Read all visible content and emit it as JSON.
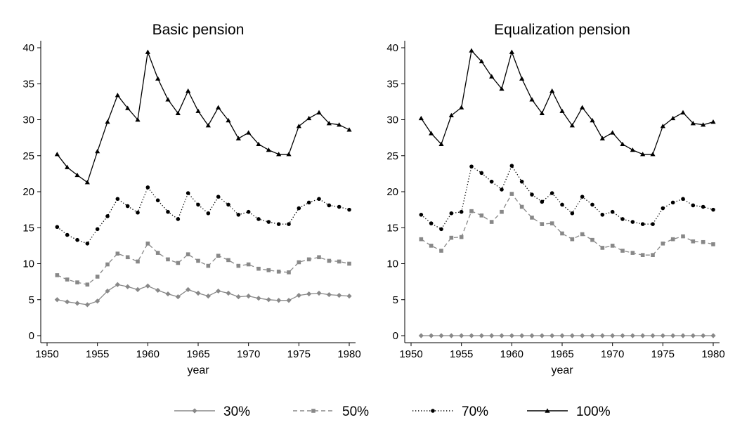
{
  "chart_data": [
    {
      "type": "line",
      "title": "Basic pension",
      "xlabel": "year",
      "ylabel": "",
      "xlim": [
        1950,
        1980
      ],
      "ylim": [
        0,
        40
      ],
      "xticks": [
        "1950",
        "1955",
        "1960",
        "1965",
        "1970",
        "1975",
        "1980"
      ],
      "yticks": [
        "0",
        "5",
        "10",
        "15",
        "20",
        "25",
        "30",
        "35",
        "40"
      ],
      "grid": false,
      "x": [
        1951,
        1952,
        1953,
        1954,
        1955,
        1956,
        1957,
        1958,
        1959,
        1960,
        1961,
        1962,
        1963,
        1964,
        1965,
        1966,
        1967,
        1968,
        1969,
        1970,
        1971,
        1972,
        1973,
        1974,
        1975,
        1976,
        1977,
        1978,
        1979,
        1980
      ],
      "series": [
        {
          "name": "30%",
          "values": [
            5.0,
            4.7,
            4.5,
            4.3,
            4.8,
            6.2,
            7.1,
            6.8,
            6.4,
            6.9,
            6.3,
            5.8,
            5.4,
            6.4,
            5.9,
            5.5,
            6.2,
            5.9,
            5.4,
            5.5,
            5.2,
            5.0,
            4.9,
            4.9,
            5.6,
            5.8,
            5.9,
            5.7,
            5.6,
            5.5
          ]
        },
        {
          "name": "50%",
          "values": [
            8.4,
            7.8,
            7.4,
            7.1,
            8.2,
            9.9,
            11.4,
            10.9,
            10.3,
            12.8,
            11.5,
            10.6,
            10.1,
            11.3,
            10.4,
            9.7,
            11.1,
            10.5,
            9.7,
            9.9,
            9.3,
            9.1,
            8.9,
            8.8,
            10.2,
            10.6,
            10.9,
            10.4,
            10.3,
            10.0
          ]
        },
        {
          "name": "70%",
          "values": [
            15.1,
            14.0,
            13.3,
            12.8,
            14.8,
            16.6,
            19.0,
            18.0,
            17.1,
            20.6,
            18.8,
            17.2,
            16.2,
            19.8,
            18.2,
            17.0,
            19.3,
            18.2,
            16.8,
            17.2,
            16.2,
            15.8,
            15.5,
            15.5,
            17.7,
            18.5,
            19.0,
            18.1,
            17.9,
            17.5
          ]
        },
        {
          "name": "100%",
          "values": [
            25.2,
            23.4,
            22.3,
            21.3,
            25.6,
            29.7,
            33.4,
            31.6,
            30.0,
            39.4,
            35.7,
            32.8,
            30.9,
            34.0,
            31.2,
            29.2,
            31.7,
            29.9,
            27.4,
            28.2,
            26.6,
            25.8,
            25.2,
            25.2,
            29.1,
            30.2,
            31.0,
            29.5,
            29.3,
            28.6
          ]
        }
      ]
    },
    {
      "type": "line",
      "title": "Equalization pension",
      "xlabel": "year",
      "ylabel": "",
      "xlim": [
        1950,
        1980
      ],
      "ylim": [
        0,
        40
      ],
      "xticks": [
        "1950",
        "1955",
        "1960",
        "1965",
        "1970",
        "1975",
        "1980"
      ],
      "yticks": [
        "0",
        "5",
        "10",
        "15",
        "20",
        "25",
        "30",
        "35",
        "40"
      ],
      "grid": false,
      "x": [
        1951,
        1952,
        1953,
        1954,
        1955,
        1956,
        1957,
        1958,
        1959,
        1960,
        1961,
        1962,
        1963,
        1964,
        1965,
        1966,
        1967,
        1968,
        1969,
        1970,
        1971,
        1972,
        1973,
        1974,
        1975,
        1976,
        1977,
        1978,
        1979,
        1980
      ],
      "series": [
        {
          "name": "30%",
          "values": [
            0,
            0,
            0,
            0,
            0,
            0,
            0,
            0,
            0,
            0,
            0,
            0,
            0,
            0,
            0,
            0,
            0,
            0,
            0,
            0,
            0,
            0,
            0,
            0,
            0,
            0,
            0,
            0,
            0,
            0
          ]
        },
        {
          "name": "50%",
          "values": [
            13.4,
            12.5,
            11.8,
            13.6,
            13.7,
            17.3,
            16.7,
            15.8,
            17.2,
            19.7,
            17.9,
            16.4,
            15.5,
            15.6,
            14.2,
            13.4,
            14.1,
            13.3,
            12.2,
            12.5,
            11.8,
            11.5,
            11.2,
            11.2,
            12.8,
            13.4,
            13.8,
            13.1,
            13.0,
            12.7
          ]
        },
        {
          "name": "70%",
          "values": [
            16.8,
            15.6,
            14.8,
            17.0,
            17.2,
            23.5,
            22.6,
            21.4,
            20.3,
            23.6,
            21.4,
            19.6,
            18.6,
            19.8,
            18.2,
            17.0,
            19.3,
            18.2,
            16.8,
            17.2,
            16.2,
            15.8,
            15.5,
            15.5,
            17.7,
            18.5,
            19.0,
            18.1,
            17.9,
            17.5
          ]
        },
        {
          "name": "100%",
          "values": [
            30.2,
            28.1,
            26.6,
            30.6,
            31.7,
            39.6,
            38.1,
            36.0,
            34.3,
            39.4,
            35.7,
            32.8,
            30.9,
            34.0,
            31.2,
            29.2,
            31.7,
            29.9,
            27.4,
            28.2,
            26.6,
            25.8,
            25.2,
            25.2,
            29.1,
            30.2,
            31.0,
            29.5,
            29.3,
            29.7
          ]
        }
      ]
    }
  ],
  "legend": {
    "placement": "bottom",
    "items": [
      {
        "label": "30%",
        "color": "#888888",
        "dash": "solid",
        "marker": "diamond"
      },
      {
        "label": "50%",
        "color": "#888888",
        "dash": "dashed",
        "marker": "square"
      },
      {
        "label": "70%",
        "color": "#000000",
        "dash": "dotted",
        "marker": "circle"
      },
      {
        "label": "100%",
        "color": "#000000",
        "dash": "solid",
        "marker": "triangle"
      }
    ]
  }
}
